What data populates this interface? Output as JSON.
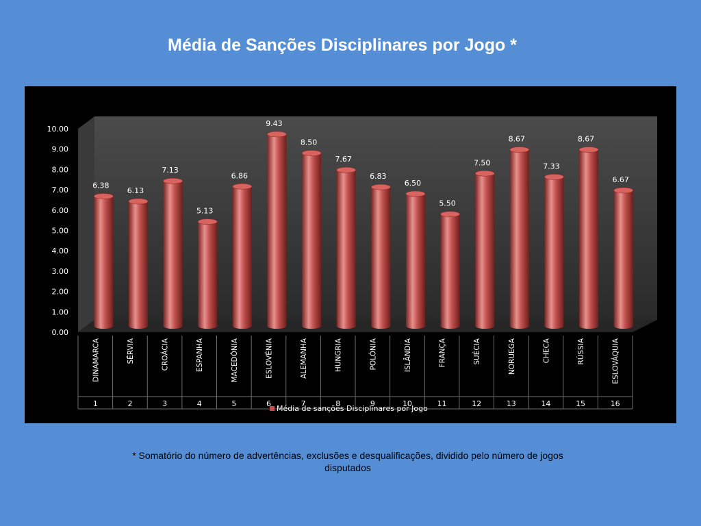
{
  "title": "Média de Sanções Disciplinares por Jogo *",
  "footnote": "* Somatório do número de advertências, exclusões e desqualificações, dividido pelo número de jogos disputados",
  "colors": {
    "background": "#558ed5",
    "panel": "#000000",
    "bar": "#c0504d",
    "bar_dark": "#7a2523",
    "bar_light": "#e8908d"
  },
  "chart_data": {
    "type": "bar",
    "title": "",
    "xlabel": "",
    "ylabel": "",
    "ylim": [
      0,
      10
    ],
    "yticks": [
      "0.00",
      "1.00",
      "2.00",
      "3.00",
      "4.00",
      "5.00",
      "6.00",
      "7.00",
      "8.00",
      "9.00",
      "10.00"
    ],
    "categories": [
      "DINAMARCA",
      "SÉRVIA",
      "CROÁCIA",
      "ESPANHA",
      "MACEDÓNIA",
      "ESLOVÉNIA",
      "ALEMANHA",
      "HUNGRIA",
      "POLÓNIA",
      "ISLÂNDIA",
      "FRANÇA",
      "SUÉCIA",
      "NORUEGA",
      "CHECA",
      "RÚSSIA",
      "ESLOVÁQUIA"
    ],
    "ranks": [
      "1",
      "2",
      "3",
      "4",
      "5",
      "6",
      "7",
      "8",
      "9",
      "10",
      "11",
      "12",
      "13",
      "14",
      "15",
      "16"
    ],
    "series": [
      {
        "name": "Média de sanções Disciplinares por Jogo",
        "values": [
          6.38,
          6.13,
          7.13,
          5.13,
          6.86,
          9.43,
          8.5,
          7.67,
          6.83,
          6.5,
          5.5,
          7.5,
          8.67,
          7.33,
          8.67,
          6.67
        ],
        "labels": [
          "6.38",
          "6.13",
          "7.13",
          "5.13",
          "6.86",
          "9.43",
          "8.50",
          "7.67",
          "6.83",
          "6.50",
          "5.50",
          "7.50",
          "8.67",
          "7.33",
          "8.67",
          "6.67"
        ]
      }
    ],
    "grid": false,
    "legend": "bottom"
  }
}
